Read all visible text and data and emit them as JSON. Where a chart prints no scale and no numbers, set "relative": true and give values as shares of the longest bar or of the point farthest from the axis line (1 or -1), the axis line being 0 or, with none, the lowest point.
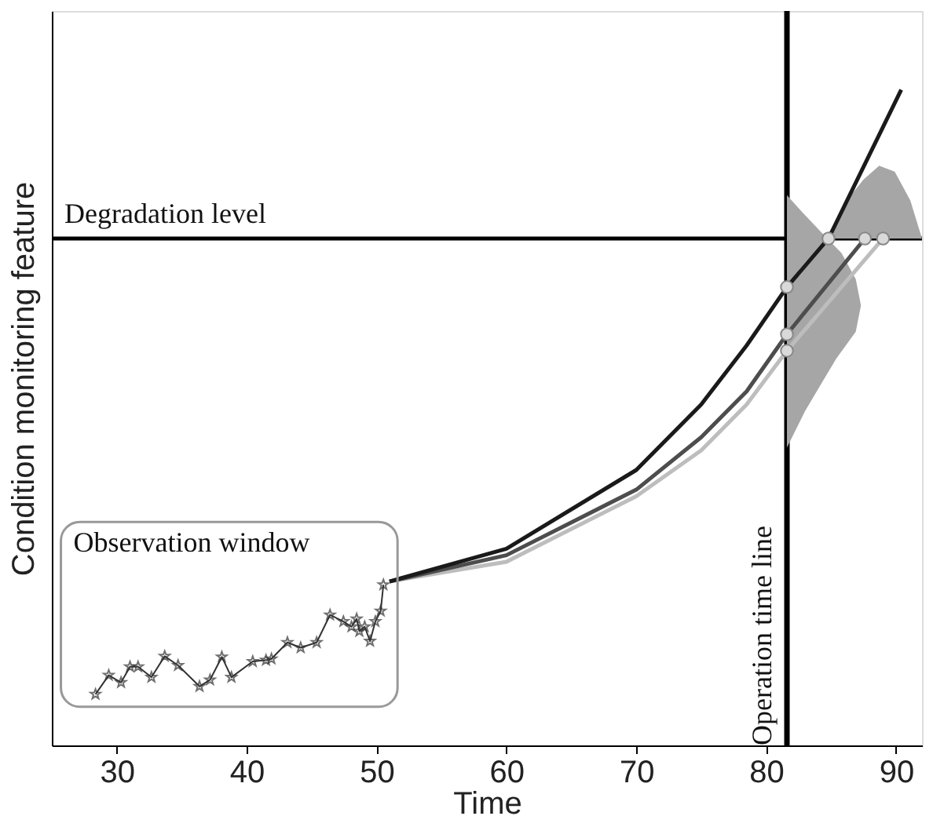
{
  "chart_data": {
    "type": "line",
    "relative": true,
    "xlabel": "Time",
    "ylabel": "Condition monitoring feature",
    "xlim": [
      25,
      92
    ],
    "xticks": [
      30,
      40,
      50,
      60,
      70,
      80,
      90
    ],
    "grid": false,
    "annotations": [
      "Observation window"
    ],
    "ref_lines": [
      {
        "axis": "y",
        "value": 0.773,
        "label": "Degradation level",
        "color": "#000000"
      },
      {
        "axis": "x",
        "value": 81.6,
        "label": "Operation time line",
        "color": "#000000"
      }
    ],
    "series": [
      {
        "type": "area",
        "color": "#a6a6a6",
        "x": [
          81.6,
          82.7,
          84.6,
          85.8,
          86.9,
          87.3,
          86.9,
          85.4,
          84.2,
          83.0,
          81.6
        ],
        "values": [
          0.839,
          0.815,
          0.775,
          0.751,
          0.711,
          0.671,
          0.631,
          0.59,
          0.55,
          0.51,
          0.454
        ]
      },
      {
        "type": "area",
        "color": "#a6a6a6",
        "x": [
          84.6,
          86.2,
          87.5,
          88.7,
          89.9,
          91.1,
          92.0
        ],
        "values": [
          0.773,
          0.831,
          0.863,
          0.884,
          0.875,
          0.831,
          0.773
        ]
      },
      {
        "color": "#bdbdbd",
        "x": [
          51,
          60,
          70,
          75,
          78.5,
          81.6,
          89.0
        ],
        "values": [
          0.25,
          0.28,
          0.38,
          0.45,
          0.52,
          0.602,
          0.773
        ]
      },
      {
        "color": "#4d4d4d",
        "x": [
          51,
          60,
          70,
          75,
          78.5,
          81.6,
          87.6
        ],
        "values": [
          0.25,
          0.29,
          0.39,
          0.47,
          0.54,
          0.627,
          0.773
        ]
      },
      {
        "color": "#1a1a1a",
        "x": [
          51,
          60,
          70,
          75,
          78.5,
          81.6,
          84.8,
          90.4
        ],
        "values": [
          0.25,
          0.3,
          0.42,
          0.52,
          0.61,
          0.699,
          0.773,
          1.0
        ]
      },
      {
        "color": "#333333",
        "marker": "star",
        "x": [
          28.36,
          29.38,
          30.33,
          31.02,
          31.64,
          32.67,
          33.69,
          34.72,
          36.37,
          37.18,
          38.09,
          38.83,
          40.47,
          41.49,
          41.91,
          43.14,
          44.16,
          45.39,
          46.42,
          47.45,
          48.07,
          48.47,
          48.68,
          49.09,
          49.5,
          49.91,
          50.32,
          50.53
        ],
        "values": [
          0.078,
          0.107,
          0.096,
          0.12,
          0.12,
          0.104,
          0.136,
          0.122,
          0.09,
          0.1,
          0.135,
          0.104,
          0.128,
          0.13,
          0.132,
          0.157,
          0.149,
          0.157,
          0.199,
          0.189,
          0.181,
          0.193,
          0.174,
          0.181,
          0.159,
          0.189,
          0.205,
          0.245
        ]
      },
      {
        "type": "scatter",
        "color": "#d9d9d9",
        "marker": "circle",
        "x": [
          81.6,
          81.6,
          81.6,
          84.8,
          87.6,
          89.0
        ],
        "values": [
          0.699,
          0.627,
          0.602,
          0.773,
          0.773,
          0.773
        ]
      }
    ]
  }
}
